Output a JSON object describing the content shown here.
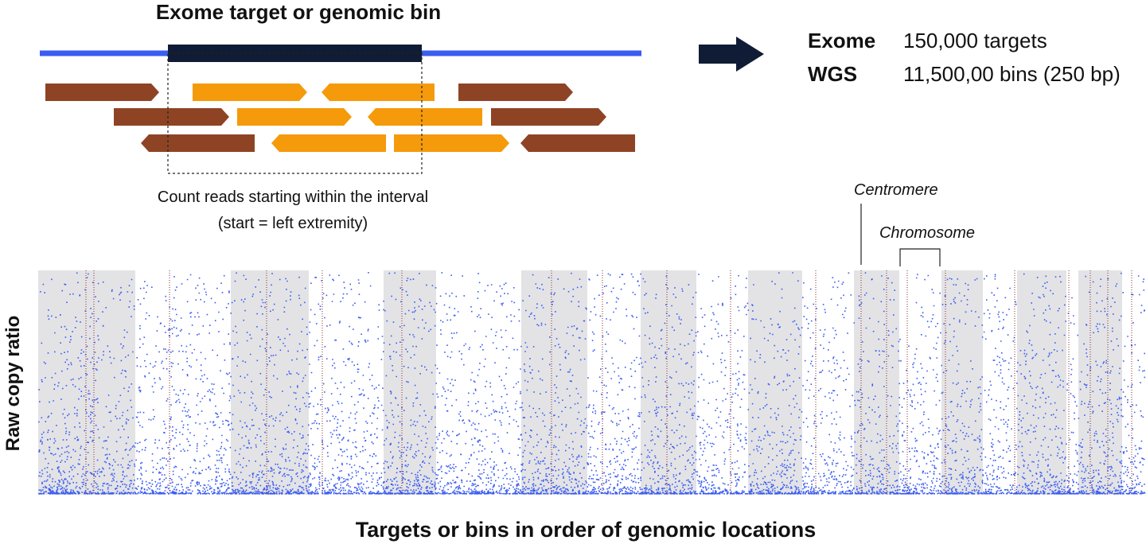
{
  "header": {
    "title": "Exome target or genomic bin"
  },
  "summary": {
    "rows": [
      [
        "Exome",
        "150,000 targets"
      ],
      [
        "WGS",
        "11,500,00 bins (250 bp)"
      ]
    ]
  },
  "caption": {
    "line1": "Count reads starting within the interval",
    "line2": "(start = left extremity)"
  },
  "annotations": {
    "centromere": "Centromere",
    "chromosome": "Chromosome"
  },
  "plot": {
    "y_label": "Raw copy ratio",
    "x_label": "Targets or bins in order of genomic locations"
  }
}
